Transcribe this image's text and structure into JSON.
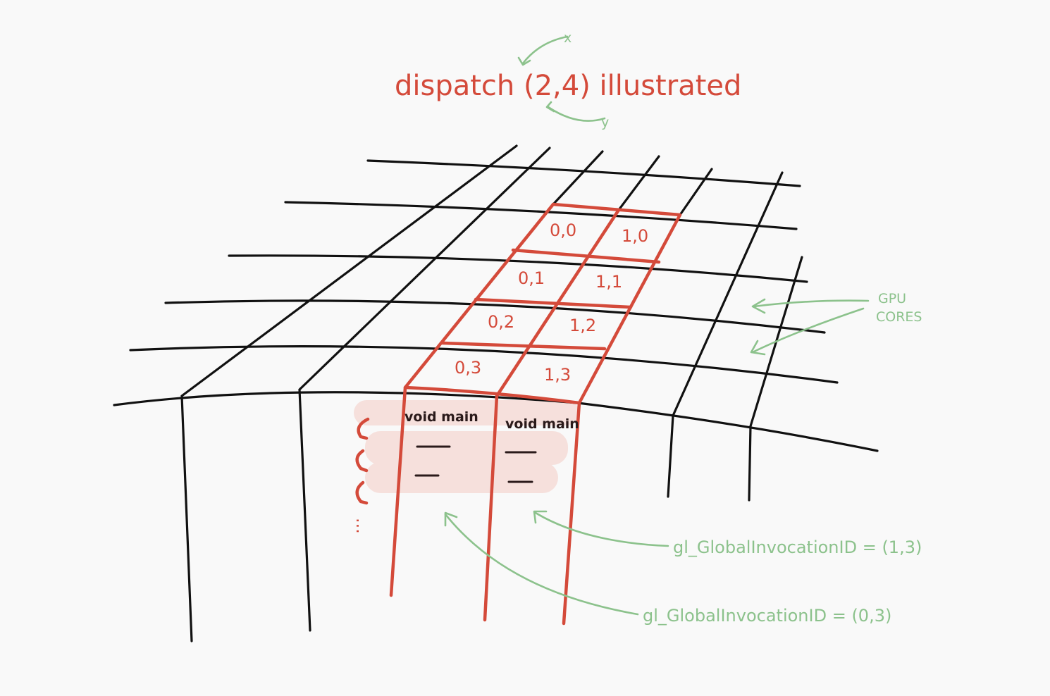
{
  "title": "dispatch (2,4) illustrated",
  "axis_labels": {
    "x": "x",
    "y": "y"
  },
  "gpu_cores_label": [
    "GPU",
    "CORES"
  ],
  "cells": [
    "0,0",
    "1,0",
    "0,1",
    "1,1",
    "0,2",
    "1,2",
    "0,3",
    "1,3"
  ],
  "code": {
    "left": "void main",
    "right": "void main",
    "ellipsis": "..."
  },
  "annotations": {
    "right": "gl_GlobalInvocationID = (1,3)",
    "left": "gl_GlobalInvocationID = (0,3)"
  },
  "colors": {
    "background": "#f9f9f9",
    "red": "#d44a3a",
    "green": "#8cc28c",
    "ink": "#111111",
    "highlight": "#f6e0dc"
  }
}
